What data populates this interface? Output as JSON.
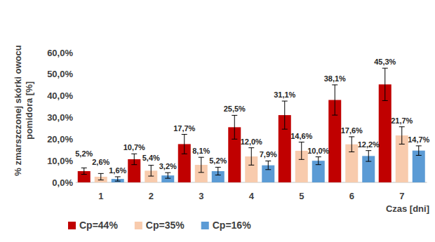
{
  "chart_data": {
    "type": "bar",
    "y_label": "% zmarszczonej skórki owocu pomidora [%]",
    "x_label": "Czas [dni]",
    "categories": [
      "1",
      "2",
      "3",
      "4",
      "5",
      "6",
      "7"
    ],
    "series": [
      {
        "name": "Cp=44%",
        "color": "#c00000",
        "values": [
          5.2,
          10.7,
          17.7,
          25.5,
          31.1,
          38.1,
          45.3
        ],
        "value_labels": [
          "5,2%",
          "10,7%",
          "17,7%",
          "25,5%",
          "31,1%",
          "38,1%",
          "45,3%"
        ],
        "errors": [
          1.5,
          2.5,
          4.5,
          5.5,
          6.5,
          7.0,
          7.5
        ]
      },
      {
        "name": "Cp=35%",
        "color": "#f8cbad",
        "values": [
          2.6,
          5.4,
          8.1,
          12.0,
          14.6,
          17.6,
          21.7
        ],
        "value_labels": [
          "2,6%",
          "5,4%",
          "8,1%",
          "12,0%",
          "14,6%",
          "17,6%",
          "21,7%"
        ],
        "errors": [
          1.5,
          2.5,
          3.5,
          4.0,
          4.0,
          3.5,
          4.0
        ]
      },
      {
        "name": "Cp=16%",
        "color": "#5b9bd5",
        "values": [
          1.6,
          3.2,
          5.2,
          7.9,
          10.0,
          12.2,
          14.7
        ],
        "value_labels": [
          "1,6%",
          "3,2%",
          "5,2%",
          "7,9%",
          "10,0%",
          "12,2%",
          "14,7%"
        ],
        "errors": [
          1.0,
          1.3,
          1.8,
          2.0,
          1.8,
          2.5,
          2.2
        ]
      }
    ],
    "ylim": [
      0,
      60
    ],
    "yticks": [
      {
        "value": 0,
        "label": "0,0%"
      },
      {
        "value": 10,
        "label": "10,0%"
      },
      {
        "value": 20,
        "label": "20,0%"
      },
      {
        "value": 30,
        "label": "30,0%"
      },
      {
        "value": 40,
        "label": "40,0%"
      },
      {
        "value": 50,
        "label": "50,0%"
      },
      {
        "value": 60,
        "label": "60,0%"
      }
    ],
    "grid": false,
    "legend": "bottom",
    "data_labels": true
  }
}
